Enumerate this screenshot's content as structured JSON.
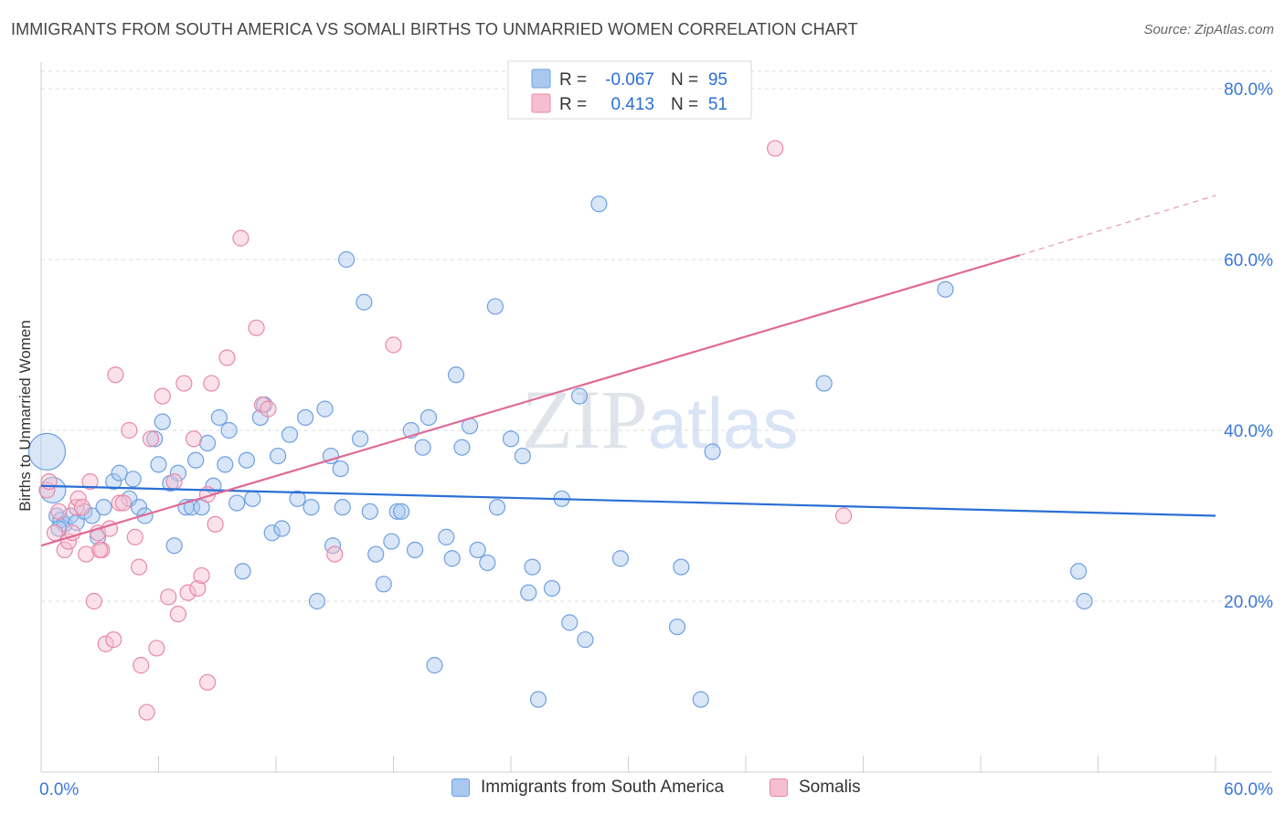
{
  "chart_data": {
    "type": "scatter",
    "title": "IMMIGRANTS FROM SOUTH AMERICA VS SOMALI BIRTHS TO UNMARRIED WOMEN CORRELATION CHART",
    "source": "Source: ZipAtlas.com",
    "ylabel": "Births to Unmarried Women",
    "xlim": [
      0,
      60
    ],
    "ylim": [
      0,
      82
    ],
    "x_tick_labels": [
      "0.0%",
      "60.0%"
    ],
    "y_ticks": [
      20,
      40,
      60,
      80
    ],
    "y_tick_labels": [
      "20.0%",
      "40.0%",
      "60.0%",
      "80.0%"
    ],
    "watermark": "ZIPatlas",
    "legend": {
      "rows": [
        {
          "r_label": "R =",
          "r_value": "-0.067",
          "n_label": "N =",
          "n_value": "95"
        },
        {
          "r_label": "R =",
          "r_value": "0.413",
          "n_label": "N =",
          "n_value": "51"
        }
      ]
    },
    "series": [
      {
        "name": "Immigrants from South America",
        "color": "#6fa0e0",
        "fill": "#a9c8f0",
        "line_color": "#2a6fd6",
        "trend": {
          "x0": 0,
          "y0": 33.5,
          "x1": 60,
          "y1": 30.0
        },
        "points": [
          [
            0.3,
            37.5
          ],
          [
            0.6,
            33.0
          ],
          [
            0.8,
            30.0
          ],
          [
            1.0,
            29.5
          ],
          [
            1.2,
            29.0
          ],
          [
            1.5,
            30.0
          ],
          [
            1.8,
            29.2
          ],
          [
            2.2,
            30.5
          ],
          [
            2.6,
            30.0
          ],
          [
            2.9,
            27.5
          ],
          [
            3.2,
            31.0
          ],
          [
            3.7,
            34.0
          ],
          [
            4.0,
            35.0
          ],
          [
            4.5,
            32.0
          ],
          [
            4.7,
            34.3
          ],
          [
            5.0,
            31.0
          ],
          [
            5.3,
            30.0
          ],
          [
            5.8,
            39.0
          ],
          [
            6.0,
            36.0
          ],
          [
            6.2,
            41.0
          ],
          [
            6.6,
            33.8
          ],
          [
            6.8,
            26.5
          ],
          [
            7.0,
            35.0
          ],
          [
            7.4,
            31.0
          ],
          [
            7.7,
            31.0
          ],
          [
            7.9,
            36.5
          ],
          [
            8.2,
            31.0
          ],
          [
            8.5,
            38.5
          ],
          [
            8.8,
            33.5
          ],
          [
            9.1,
            41.5
          ],
          [
            9.4,
            36.0
          ],
          [
            9.6,
            40.0
          ],
          [
            10.0,
            31.5
          ],
          [
            10.3,
            23.5
          ],
          [
            10.5,
            36.5
          ],
          [
            10.8,
            32.0
          ],
          [
            11.2,
            41.5
          ],
          [
            11.4,
            43.0
          ],
          [
            11.8,
            28.0
          ],
          [
            12.3,
            28.5
          ],
          [
            12.1,
            37.0
          ],
          [
            12.7,
            39.5
          ],
          [
            13.1,
            32.0
          ],
          [
            13.5,
            41.5
          ],
          [
            13.8,
            31.0
          ],
          [
            14.1,
            20.0
          ],
          [
            14.5,
            42.5
          ],
          [
            14.9,
            26.5
          ],
          [
            14.8,
            37.0
          ],
          [
            15.3,
            35.5
          ],
          [
            15.4,
            31.0
          ],
          [
            15.6,
            60.0
          ],
          [
            16.3,
            39.0
          ],
          [
            16.5,
            55.0
          ],
          [
            16.8,
            30.5
          ],
          [
            17.1,
            25.5
          ],
          [
            17.5,
            22.0
          ],
          [
            17.9,
            27.0
          ],
          [
            18.2,
            30.5
          ],
          [
            18.4,
            30.5
          ],
          [
            18.9,
            40.0
          ],
          [
            19.1,
            26.0
          ],
          [
            19.5,
            38.0
          ],
          [
            19.8,
            41.5
          ],
          [
            20.1,
            12.5
          ],
          [
            20.7,
            27.5
          ],
          [
            21.0,
            25.0
          ],
          [
            21.2,
            46.5
          ],
          [
            21.5,
            38.0
          ],
          [
            21.9,
            40.5
          ],
          [
            22.3,
            26.0
          ],
          [
            22.8,
            24.5
          ],
          [
            23.2,
            54.5
          ],
          [
            23.3,
            31.0
          ],
          [
            24.0,
            39.0
          ],
          [
            24.6,
            37.0
          ],
          [
            24.9,
            21.0
          ],
          [
            25.1,
            24.0
          ],
          [
            25.4,
            8.5
          ],
          [
            26.1,
            21.5
          ],
          [
            26.6,
            32.0
          ],
          [
            27.0,
            17.5
          ],
          [
            27.5,
            44.0
          ],
          [
            27.8,
            15.5
          ],
          [
            28.5,
            66.5
          ],
          [
            29.6,
            25.0
          ],
          [
            32.5,
            17.0
          ],
          [
            32.7,
            24.0
          ],
          [
            33.7,
            8.5
          ],
          [
            34.3,
            37.5
          ],
          [
            40.0,
            45.5
          ],
          [
            46.2,
            56.5
          ],
          [
            53.0,
            23.5
          ],
          [
            53.3,
            20.0
          ],
          [
            0.9,
            28.5
          ]
        ]
      },
      {
        "name": "Somalis",
        "color": "#e888a8",
        "fill": "#f6bfd0",
        "line_color": "#e06a95",
        "trend": {
          "x0": 0,
          "y0": 26.5,
          "x1": 50,
          "y1": 60.5
        },
        "trend_dashed": {
          "x0": 50,
          "y0": 60.5,
          "x1": 60,
          "y1": 67.5
        },
        "points": [
          [
            0.3,
            33.0
          ],
          [
            0.4,
            34.0
          ],
          [
            0.7,
            28.0
          ],
          [
            0.9,
            30.5
          ],
          [
            1.2,
            26.0
          ],
          [
            1.4,
            27.0
          ],
          [
            1.6,
            28.0
          ],
          [
            1.8,
            31.0
          ],
          [
            1.9,
            32.0
          ],
          [
            2.1,
            31.0
          ],
          [
            2.3,
            25.5
          ],
          [
            2.5,
            34.0
          ],
          [
            2.7,
            20.0
          ],
          [
            2.9,
            28.0
          ],
          [
            3.1,
            26.0
          ],
          [
            3.3,
            15.0
          ],
          [
            3.5,
            28.5
          ],
          [
            3.7,
            15.5
          ],
          [
            3.8,
            46.5
          ],
          [
            4.0,
            31.5
          ],
          [
            4.2,
            31.5
          ],
          [
            4.5,
            40.0
          ],
          [
            4.8,
            27.5
          ],
          [
            5.0,
            24.0
          ],
          [
            5.1,
            12.5
          ],
          [
            5.4,
            7.0
          ],
          [
            5.6,
            39.0
          ],
          [
            5.9,
            14.5
          ],
          [
            6.2,
            44.0
          ],
          [
            6.5,
            20.5
          ],
          [
            6.8,
            34.0
          ],
          [
            7.0,
            18.5
          ],
          [
            7.3,
            45.5
          ],
          [
            7.5,
            21.0
          ],
          [
            7.8,
            39.0
          ],
          [
            8.0,
            21.5
          ],
          [
            8.2,
            23.0
          ],
          [
            8.5,
            10.5
          ],
          [
            8.7,
            45.5
          ],
          [
            8.9,
            29.0
          ],
          [
            9.5,
            48.5
          ],
          [
            10.2,
            62.5
          ],
          [
            11.0,
            52.0
          ],
          [
            11.3,
            43.0
          ],
          [
            11.6,
            42.5
          ],
          [
            15.0,
            25.5
          ],
          [
            18.0,
            50.0
          ],
          [
            37.5,
            73.0
          ],
          [
            41.0,
            30.0
          ],
          [
            3.0,
            26.0
          ],
          [
            8.5,
            32.5
          ]
        ]
      }
    ]
  }
}
